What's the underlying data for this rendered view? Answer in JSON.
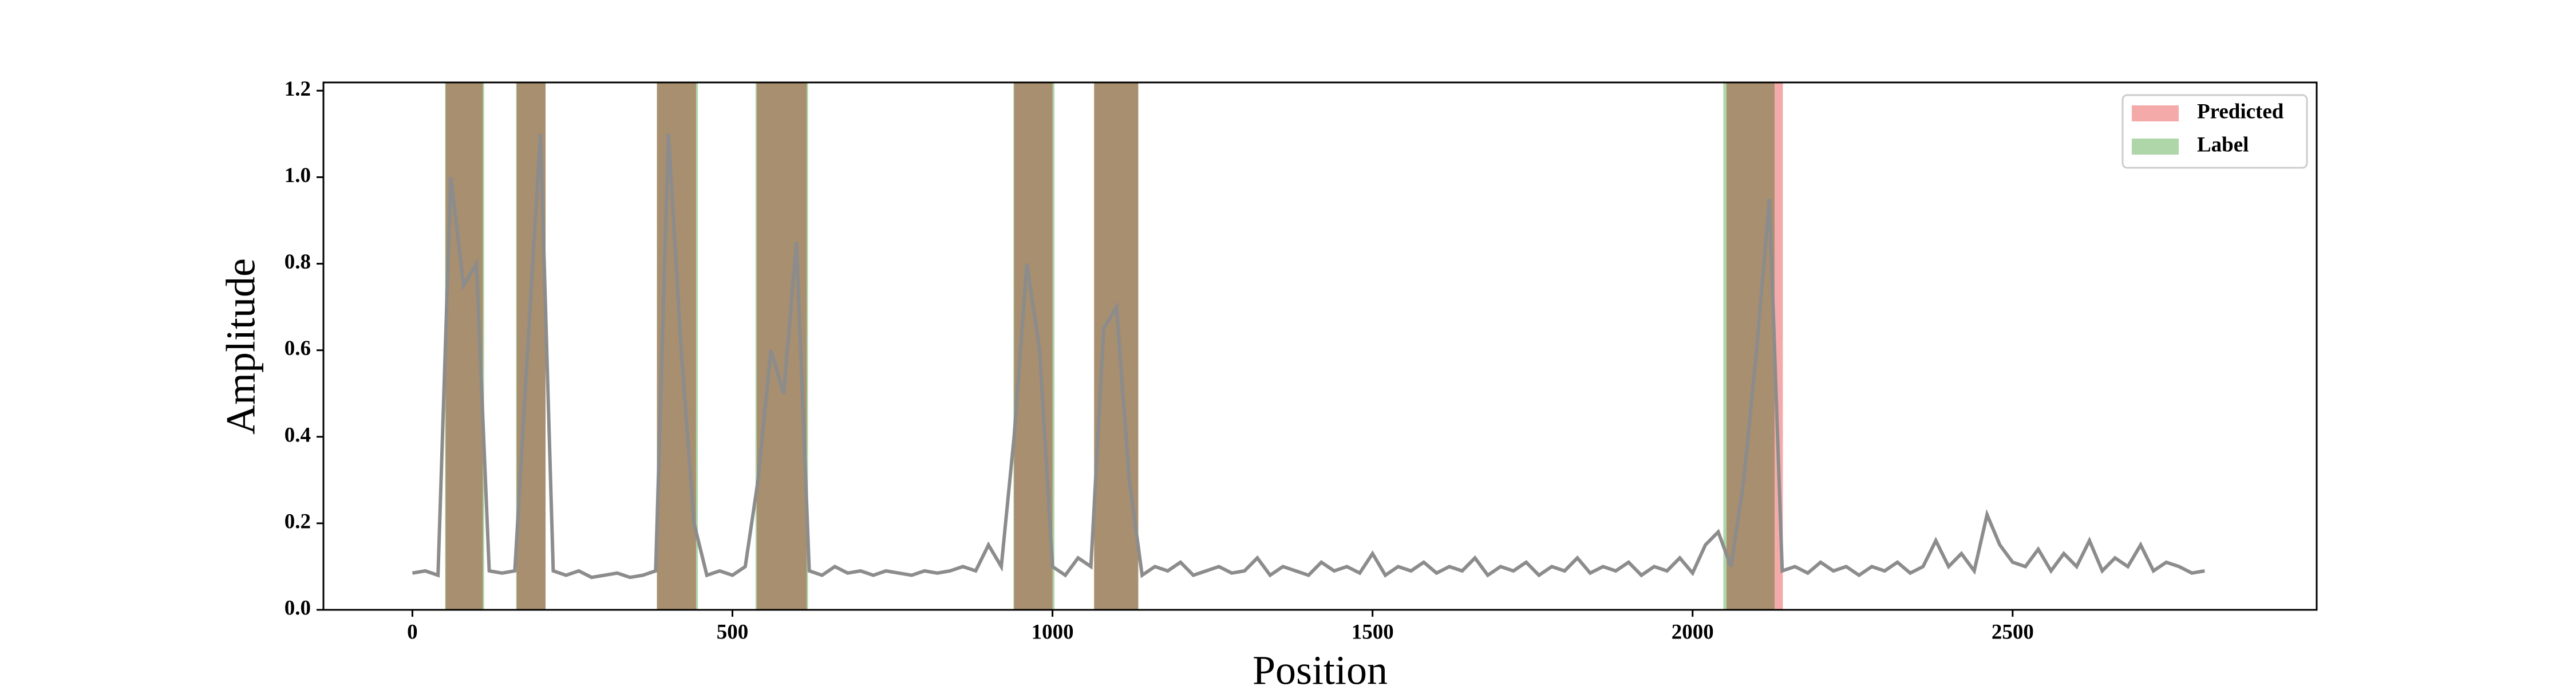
{
  "chart_data": {
    "type": "line",
    "xlabel": "Position",
    "ylabel": "Amplitude",
    "x": [
      0,
      20,
      40,
      60,
      80,
      100,
      120,
      140,
      160,
      180,
      200,
      220,
      240,
      260,
      280,
      300,
      320,
      340,
      360,
      380,
      400,
      420,
      440,
      460,
      480,
      500,
      520,
      540,
      560,
      580,
      600,
      620,
      640,
      660,
      680,
      700,
      720,
      740,
      760,
      780,
      800,
      820,
      840,
      860,
      880,
      900,
      920,
      940,
      960,
      980,
      1000,
      1020,
      1040,
      1060,
      1080,
      1100,
      1120,
      1140,
      1160,
      1180,
      1200,
      1220,
      1240,
      1260,
      1280,
      1300,
      1320,
      1340,
      1360,
      1380,
      1400,
      1420,
      1440,
      1460,
      1480,
      1500,
      1520,
      1540,
      1560,
      1580,
      1600,
      1620,
      1640,
      1660,
      1680,
      1700,
      1720,
      1740,
      1760,
      1780,
      1800,
      1820,
      1840,
      1860,
      1880,
      1900,
      1920,
      1940,
      1960,
      1980,
      2000,
      2020,
      2040,
      2060,
      2080,
      2100,
      2120,
      2140,
      2160,
      2180,
      2200,
      2220,
      2240,
      2260,
      2280,
      2300,
      2320,
      2340,
      2360,
      2380,
      2400,
      2420,
      2440,
      2460,
      2480,
      2500,
      2520,
      2540,
      2560,
      2580,
      2600,
      2620,
      2640,
      2660,
      2680,
      2700,
      2720,
      2740,
      2760,
      2780,
      2800
    ],
    "values": [
      0.085,
      0.09,
      0.08,
      1.0,
      0.75,
      0.8,
      0.09,
      0.085,
      0.09,
      0.6,
      1.1,
      0.09,
      0.08,
      0.09,
      0.075,
      0.08,
      0.085,
      0.075,
      0.08,
      0.09,
      1.1,
      0.6,
      0.2,
      0.08,
      0.09,
      0.08,
      0.1,
      0.3,
      0.6,
      0.5,
      0.85,
      0.09,
      0.08,
      0.1,
      0.085,
      0.09,
      0.08,
      0.09,
      0.085,
      0.08,
      0.09,
      0.085,
      0.09,
      0.1,
      0.09,
      0.15,
      0.1,
      0.4,
      0.8,
      0.6,
      0.1,
      0.08,
      0.12,
      0.1,
      0.65,
      0.7,
      0.3,
      0.08,
      0.1,
      0.09,
      0.11,
      0.08,
      0.09,
      0.1,
      0.085,
      0.09,
      0.12,
      0.08,
      0.1,
      0.09,
      0.08,
      0.11,
      0.09,
      0.1,
      0.085,
      0.13,
      0.08,
      0.1,
      0.09,
      0.11,
      0.085,
      0.1,
      0.09,
      0.12,
      0.08,
      0.1,
      0.09,
      0.11,
      0.08,
      0.1,
      0.09,
      0.12,
      0.085,
      0.1,
      0.09,
      0.11,
      0.08,
      0.1,
      0.09,
      0.12,
      0.085,
      0.15,
      0.18,
      0.1,
      0.3,
      0.6,
      0.95,
      0.09,
      0.1,
      0.085,
      0.11,
      0.09,
      0.1,
      0.08,
      0.1,
      0.09,
      0.11,
      0.085,
      0.1,
      0.16,
      0.1,
      0.13,
      0.09,
      0.22,
      0.15,
      0.11,
      0.1,
      0.14,
      0.09,
      0.13,
      0.1,
      0.16,
      0.09,
      0.12,
      0.1,
      0.15,
      0.09,
      0.11,
      0.1,
      0.085,
      0.09
    ],
    "color": "#8c8c8c",
    "regions": [
      {
        "name": "Predicted",
        "color": "#f5aaaa",
        "spans": [
          [
            52,
            110
          ],
          [
            163,
            208
          ],
          [
            382,
            443
          ],
          [
            538,
            616
          ],
          [
            940,
            1000
          ],
          [
            1065,
            1134
          ],
          [
            2053,
            2141
          ]
        ]
      },
      {
        "name": "Label",
        "color": "#aed6a8",
        "spans": [
          [
            51,
            112
          ],
          [
            162,
            208
          ],
          [
            382,
            446
          ],
          [
            536,
            618
          ],
          [
            939,
            1003
          ],
          [
            1065,
            1134
          ],
          [
            2048,
            2128
          ]
        ]
      }
    ],
    "xlim": [
      -139,
      2975
    ],
    "xticks": [
      0,
      500,
      1000,
      1500,
      2000,
      2500
    ],
    "ylim": [
      0,
      1.219
    ],
    "yticks": [
      {
        "value": 0,
        "label": "0.0"
      },
      0.2,
      0.4,
      0.6,
      0.8,
      {
        "value": 1,
        "label": "1.0"
      },
      1.2
    ],
    "legend": "upper right"
  }
}
